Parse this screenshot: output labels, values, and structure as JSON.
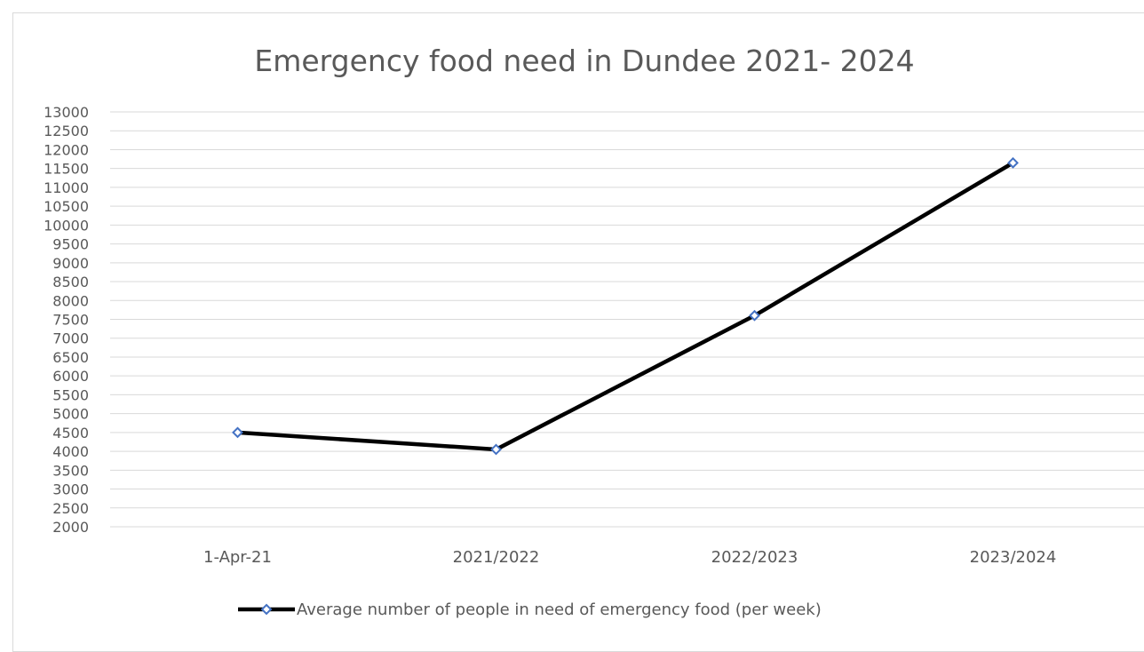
{
  "chart_data": {
    "type": "line",
    "title": "Emergency food need in Dundee 2021- 2024",
    "xlabel": "",
    "ylabel": "",
    "categories": [
      "1-Apr-21",
      "2021/2022",
      "2022/2023",
      "2023/2024"
    ],
    "series": [
      {
        "name": "Average number of people in need of emergency food (per week)",
        "values": [
          4500,
          4050,
          7600,
          11650
        ],
        "line_color": "#000000",
        "marker_color": "#4472c4"
      }
    ],
    "ylim": [
      2000,
      13000
    ],
    "yticks": [
      2000,
      2500,
      3000,
      3500,
      4000,
      4500,
      5000,
      5500,
      6000,
      6500,
      7000,
      7500,
      8000,
      8500,
      9000,
      9500,
      10000,
      10500,
      11000,
      11500,
      12000,
      12500,
      13000
    ],
    "grid": true,
    "legend": "bottom"
  }
}
